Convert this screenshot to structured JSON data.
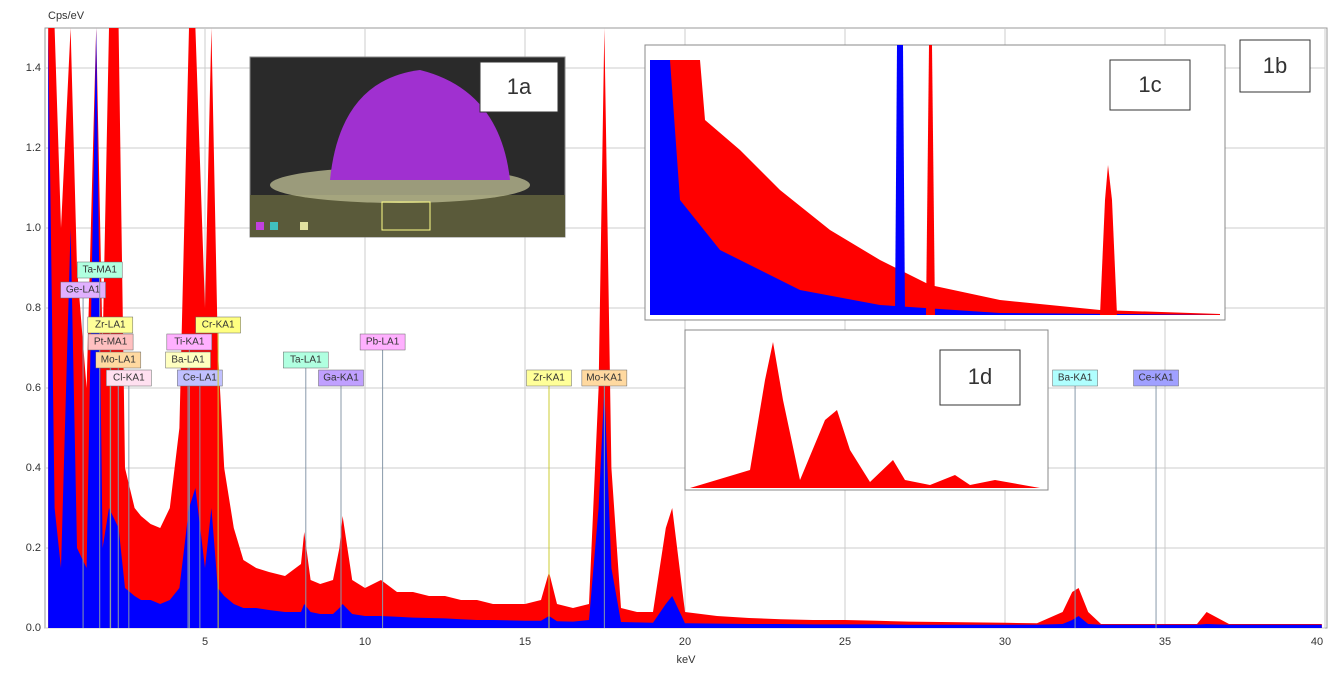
{
  "chart_data": {
    "type": "area",
    "ylabel": "Cps/eV",
    "xlabel": "keV",
    "xlim": [
      0,
      40
    ],
    "ylim": [
      0,
      1.5
    ],
    "xticks": [
      5,
      10,
      15,
      20,
      25,
      30,
      35,
      40
    ],
    "yticks": [
      {
        "value": 0,
        "label": "0.0"
      },
      0.2,
      0.4,
      0.6,
      0.8,
      {
        "value": 1,
        "label": "1.0"
      },
      1.2,
      1.4
    ],
    "grid": true,
    "x": [
      0.1,
      0.3,
      0.5,
      0.8,
      1.0,
      1.3,
      1.6,
      1.8,
      2.0,
      2.3,
      2.5,
      2.8,
      3.0,
      3.3,
      3.6,
      3.9,
      4.2,
      4.5,
      4.7,
      5.0,
      5.2,
      5.4,
      5.6,
      5.9,
      6.2,
      6.6,
      7.0,
      7.5,
      8.0,
      8.1,
      8.3,
      8.6,
      9.0,
      9.2,
      9.3,
      9.6,
      10.0,
      10.5,
      11.0,
      11.5,
      12.0,
      12.5,
      13.0,
      13.5,
      14.0,
      15.0,
      15.5,
      15.75,
      16.0,
      16.5,
      17.0,
      17.3,
      17.48,
      17.7,
      18.0,
      18.5,
      19.0,
      19.4,
      19.6,
      20.0,
      21,
      22,
      23,
      24,
      25,
      26,
      27,
      28,
      29,
      30,
      31,
      31.8,
      32.1,
      32.3,
      32.6,
      33,
      34,
      35,
      36,
      36.3,
      37,
      38,
      39,
      39.9
    ],
    "series": [
      {
        "color": "#ff0000",
        "values": [
          1.5,
          1.5,
          1.0,
          1.5,
          0.9,
          0.6,
          1.5,
          0.7,
          1.5,
          1.5,
          0.4,
          0.3,
          0.28,
          0.26,
          0.25,
          0.3,
          0.5,
          1.5,
          1.5,
          0.8,
          1.5,
          0.7,
          0.4,
          0.25,
          0.17,
          0.15,
          0.14,
          0.13,
          0.16,
          0.24,
          0.12,
          0.11,
          0.12,
          0.2,
          0.28,
          0.12,
          0.1,
          0.12,
          0.09,
          0.09,
          0.08,
          0.08,
          0.07,
          0.07,
          0.06,
          0.06,
          0.07,
          0.14,
          0.06,
          0.05,
          0.06,
          0.6,
          1.5,
          0.4,
          0.05,
          0.04,
          0.04,
          0.25,
          0.3,
          0.04,
          0.03,
          0.025,
          0.022,
          0.02,
          0.02,
          0.018,
          0.016,
          0.015,
          0.014,
          0.013,
          0.012,
          0.04,
          0.09,
          0.1,
          0.04,
          0.01,
          0.01,
          0.01,
          0.01,
          0.04,
          0.01,
          0.01,
          0.01,
          0.01
        ]
      },
      {
        "color": "#0000ff",
        "values": [
          1.5,
          0.3,
          0.15,
          1.0,
          0.2,
          0.15,
          1.5,
          0.2,
          0.3,
          0.25,
          0.1,
          0.08,
          0.07,
          0.07,
          0.06,
          0.07,
          0.1,
          0.3,
          0.35,
          0.15,
          0.3,
          0.1,
          0.08,
          0.06,
          0.05,
          0.05,
          0.045,
          0.04,
          0.04,
          0.06,
          0.04,
          0.035,
          0.035,
          0.05,
          0.06,
          0.035,
          0.03,
          0.03,
          0.028,
          0.026,
          0.025,
          0.024,
          0.022,
          0.02,
          0.02,
          0.018,
          0.018,
          0.03,
          0.017,
          0.016,
          0.02,
          0.3,
          0.6,
          0.15,
          0.015,
          0.014,
          0.013,
          0.06,
          0.08,
          0.012,
          0.011,
          0.01,
          0.01,
          0.009,
          0.009,
          0.009,
          0.008,
          0.008,
          0.008,
          0.008,
          0.008,
          0.01,
          0.02,
          0.03,
          0.01,
          0.008,
          0.008,
          0.008,
          0.008,
          0.01,
          0.008,
          0.008,
          0.008,
          0.008
        ]
      }
    ],
    "markers": [
      {
        "label": "Ge-LA1",
        "x": 1.19,
        "color": "#e0b0ff"
      },
      {
        "label": "Ta-MA1",
        "x": 1.71,
        "color": "#b0ffe0"
      },
      {
        "label": "Zr-LA1",
        "x": 2.04,
        "color": "#ffff99"
      },
      {
        "label": "Pt-MA1",
        "x": 2.05,
        "color": "#ffc0c0"
      },
      {
        "label": "Mo-LA1",
        "x": 2.29,
        "color": "#ffd9a0"
      },
      {
        "label": "Cl-KA1",
        "x": 2.62,
        "color": "#ffe0f0"
      },
      {
        "label": "Ti-KA1",
        "x": 4.51,
        "color": "#ffb0ff"
      },
      {
        "label": "Ba-LA1",
        "x": 4.47,
        "color": "#ffffc0"
      },
      {
        "label": "Ce-LA1",
        "x": 4.84,
        "color": "#c0c0ff"
      },
      {
        "label": "Cr-KA1",
        "x": 5.41,
        "color": "#ffff80"
      },
      {
        "label": "Ta-LA1",
        "x": 8.15,
        "color": "#b0ffe0"
      },
      {
        "label": "Pb-LA1",
        "x": 10.55,
        "color": "#ffb0ff"
      },
      {
        "label": "Ga-KA1",
        "x": 9.25,
        "color": "#c0a0ff"
      },
      {
        "label": "Zr-KA1",
        "x": 15.75,
        "color": "#ffff99"
      },
      {
        "label": "Mo-KA1",
        "x": 17.48,
        "color": "#ffd9a0"
      },
      {
        "label": "Ba-KA1",
        "x": 32.19,
        "color": "#b0ffff"
      },
      {
        "label": "Ce-KA1",
        "x": 34.72,
        "color": "#a0a0ff"
      }
    ],
    "insets": [
      "1a",
      "1b",
      "1c",
      "1d"
    ]
  }
}
